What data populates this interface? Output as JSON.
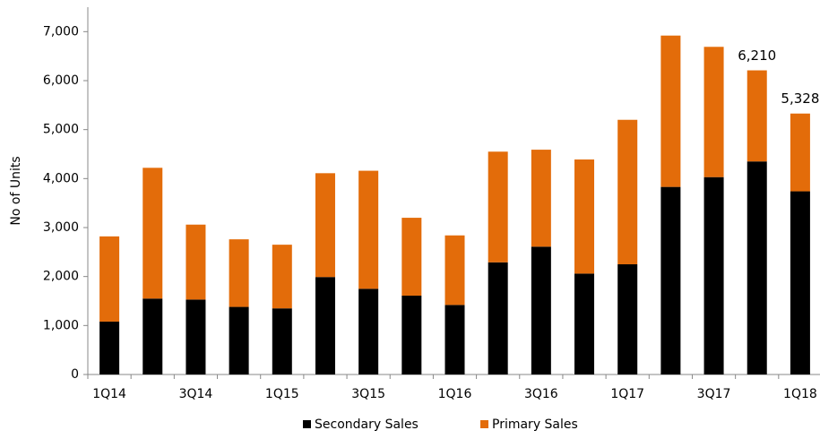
{
  "chart_data": {
    "type": "stacked-bar",
    "y_label": "No of Units",
    "categories": [
      "1Q14",
      null,
      "3Q14",
      null,
      "1Q15",
      null,
      "3Q15",
      null,
      "1Q16",
      null,
      "3Q16",
      null,
      "1Q17",
      null,
      "3Q17",
      null,
      "1Q18"
    ],
    "series": [
      {
        "name": "Secondary Sales",
        "color": "#000000",
        "values": [
          1080,
          1550,
          1530,
          1380,
          1350,
          1990,
          1750,
          1610,
          1420,
          2290,
          2610,
          2060,
          2250,
          3830,
          4030,
          4350,
          3740
        ]
      },
      {
        "name": "Primary Sales",
        "color": "#e36c0a",
        "values": [
          1740,
          2670,
          1530,
          1380,
          1300,
          2120,
          2410,
          1590,
          1420,
          2260,
          1980,
          2330,
          2950,
          3090,
          2660,
          1860,
          1588
        ]
      }
    ],
    "total_labels": [
      {
        "value": 6210,
        "label": "6,210"
      },
      {
        "value": 5328,
        "label": "5,328"
      }
    ],
    "ylim": [
      0,
      7500
    ],
    "yticks": [
      0,
      {
        "value": 1000,
        "label": "1,000"
      },
      {
        "value": 2000,
        "label": "2,000"
      },
      {
        "value": 3000,
        "label": "3,000"
      },
      {
        "value": 4000,
        "label": "4,000"
      },
      {
        "value": 5000,
        "label": "5,000"
      },
      {
        "value": 6000,
        "label": "6,000"
      },
      {
        "value": 7000,
        "label": "7,000"
      }
    ],
    "grid": false
  }
}
